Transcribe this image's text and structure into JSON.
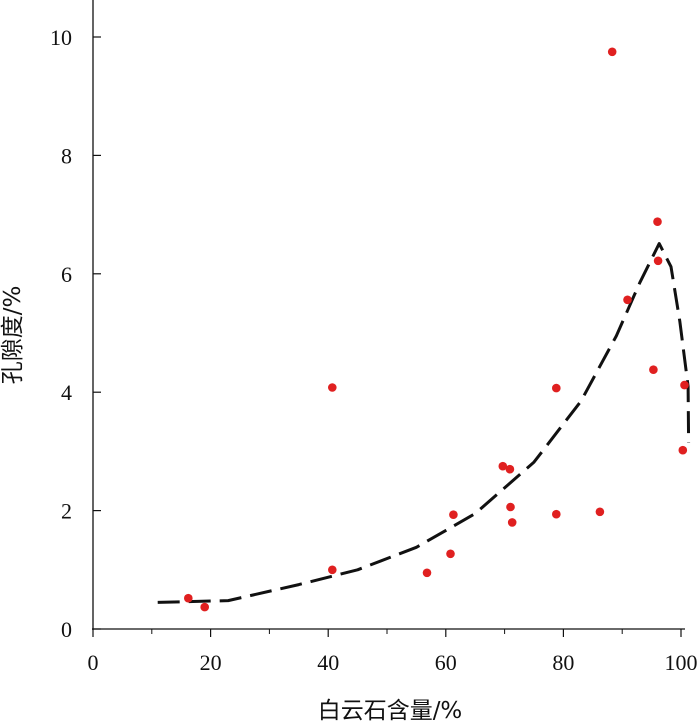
{
  "chart_data": {
    "type": "scatter",
    "title": "",
    "xlabel": "白云石含量/%",
    "ylabel": "孔隙度/%",
    "xlim": [
      0,
      100
    ],
    "ylim": [
      0,
      10.6
    ],
    "xticks": [
      0,
      20,
      40,
      60,
      80,
      100
    ],
    "xtick_labels": [
      "0",
      "20",
      "40",
      "60",
      "80",
      "100"
    ],
    "xminor": [
      10,
      30,
      50,
      70,
      90
    ],
    "yticks": [
      0,
      2,
      4,
      6,
      8,
      10
    ],
    "ytick_labels": [
      "0",
      "2",
      "4",
      "6",
      "8",
      "10"
    ],
    "grid": false,
    "point_color": "#e02020",
    "curve_color": "#111111",
    "points": [
      {
        "x": 16.2,
        "y": 0.52
      },
      {
        "x": 19.0,
        "y": 0.37
      },
      {
        "x": 40.7,
        "y": 1.0
      },
      {
        "x": 40.7,
        "y": 4.08
      },
      {
        "x": 56.8,
        "y": 0.95
      },
      {
        "x": 60.8,
        "y": 1.27
      },
      {
        "x": 61.3,
        "y": 1.93
      },
      {
        "x": 69.7,
        "y": 2.75
      },
      {
        "x": 70.9,
        "y": 2.7
      },
      {
        "x": 71.0,
        "y": 2.06
      },
      {
        "x": 71.3,
        "y": 1.8
      },
      {
        "x": 78.8,
        "y": 4.07
      },
      {
        "x": 78.8,
        "y": 1.94
      },
      {
        "x": 86.2,
        "y": 1.98
      },
      {
        "x": 88.3,
        "y": 9.75
      },
      {
        "x": 90.9,
        "y": 5.56
      },
      {
        "x": 95.3,
        "y": 4.38
      },
      {
        "x": 96.0,
        "y": 6.88
      },
      {
        "x": 96.1,
        "y": 6.22
      },
      {
        "x": 100.3,
        "y": 3.02
      },
      {
        "x": 100.6,
        "y": 4.12
      }
    ],
    "trend_curve": [
      [
        11.0,
        0.45
      ],
      [
        23.0,
        0.48
      ],
      [
        35.0,
        0.75
      ],
      [
        45.0,
        1.0
      ],
      [
        55.0,
        1.38
      ],
      [
        65.0,
        1.95
      ],
      [
        75.0,
        2.82
      ],
      [
        83.0,
        3.85
      ],
      [
        89.0,
        4.95
      ],
      [
        93.0,
        5.85
      ],
      [
        96.3,
        6.51
      ],
      [
        98.3,
        6.12
      ],
      [
        99.8,
        5.2
      ],
      [
        101.2,
        4.1
      ],
      [
        101.3,
        3.15
      ]
    ]
  }
}
